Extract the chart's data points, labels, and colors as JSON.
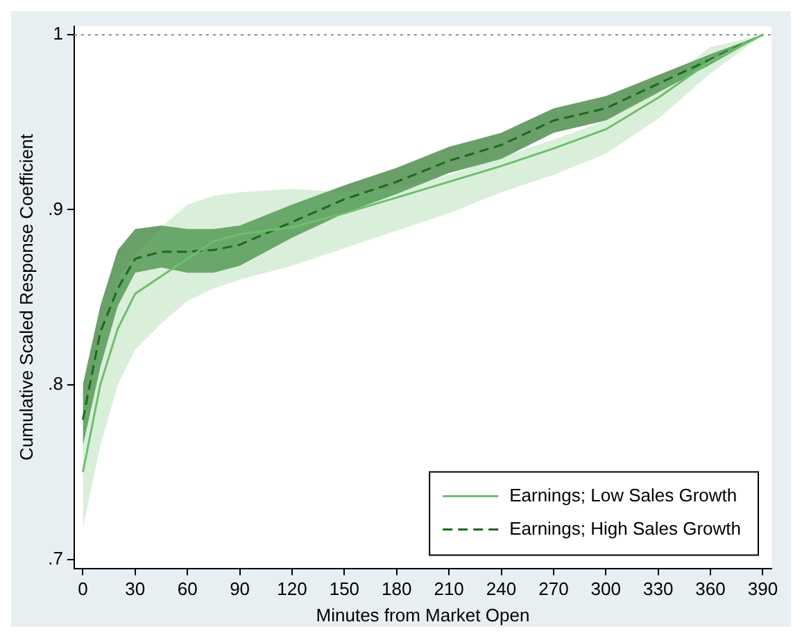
{
  "chart_data": {
    "type": "line",
    "xlabel": "Minutes from Market Open",
    "ylabel": "Cumulative Scaled Response Coefficient",
    "x": [
      0,
      10,
      20,
      30,
      45,
      60,
      75,
      90,
      120,
      150,
      180,
      210,
      240,
      270,
      300,
      330,
      360,
      390
    ],
    "xlim": [
      -5,
      395
    ],
    "xticks": [
      0,
      30,
      60,
      90,
      120,
      150,
      180,
      210,
      240,
      270,
      300,
      330,
      360,
      390
    ],
    "ylim": [
      0.695,
      1.005
    ],
    "yticks": [
      {
        "value": 0.7,
        "label": ".7"
      },
      {
        "value": 0.8,
        "label": ".8"
      },
      {
        "value": 0.9,
        "label": ".9"
      },
      1
    ],
    "marker": "none",
    "grid": false,
    "legend": "bottom right",
    "ref_lines": [
      {
        "axis": "y",
        "value": 1,
        "line_style": "dotted",
        "color": "#888888"
      }
    ],
    "series": [
      {
        "name": "Earnings; Low Sales Growth",
        "color": "#6cbf6c",
        "line_style": "solid",
        "values": [
          0.75,
          0.8,
          0.832,
          0.852,
          0.862,
          0.872,
          0.882,
          0.886,
          0.89,
          0.898,
          0.907,
          0.916,
          0.925,
          0.935,
          0.946,
          0.964,
          0.985,
          1
        ],
        "lower": [
          0.718,
          0.765,
          0.8,
          0.82,
          0.835,
          0.848,
          0.855,
          0.86,
          0.868,
          0.878,
          0.888,
          0.898,
          0.91,
          0.92,
          0.932,
          0.952,
          0.978,
          1
        ],
        "upper": [
          0.78,
          0.83,
          0.86,
          0.875,
          0.89,
          0.903,
          0.908,
          0.91,
          0.912,
          0.91,
          0.912,
          0.92,
          0.93,
          0.94,
          0.951,
          0.97,
          0.993,
          1
        ]
      },
      {
        "name": "Earnings; High Sales Growth",
        "color": "#1a6b1a",
        "line_style": "dashed",
        "values": [
          0.78,
          0.83,
          0.855,
          0.872,
          0.876,
          0.876,
          0.877,
          0.88,
          0.893,
          0.906,
          0.916,
          0.928,
          0.937,
          0.951,
          0.958,
          0.972,
          0.986,
          1
        ],
        "lower": [
          0.765,
          0.81,
          0.845,
          0.864,
          0.867,
          0.864,
          0.864,
          0.868,
          0.884,
          0.898,
          0.909,
          0.921,
          0.929,
          0.944,
          0.951,
          0.967,
          0.983,
          1
        ],
        "upper": [
          0.8,
          0.845,
          0.877,
          0.889,
          0.891,
          0.889,
          0.889,
          0.891,
          0.903,
          0.914,
          0.924,
          0.936,
          0.944,
          0.958,
          0.965,
          0.977,
          0.989,
          1
        ]
      }
    ]
  }
}
